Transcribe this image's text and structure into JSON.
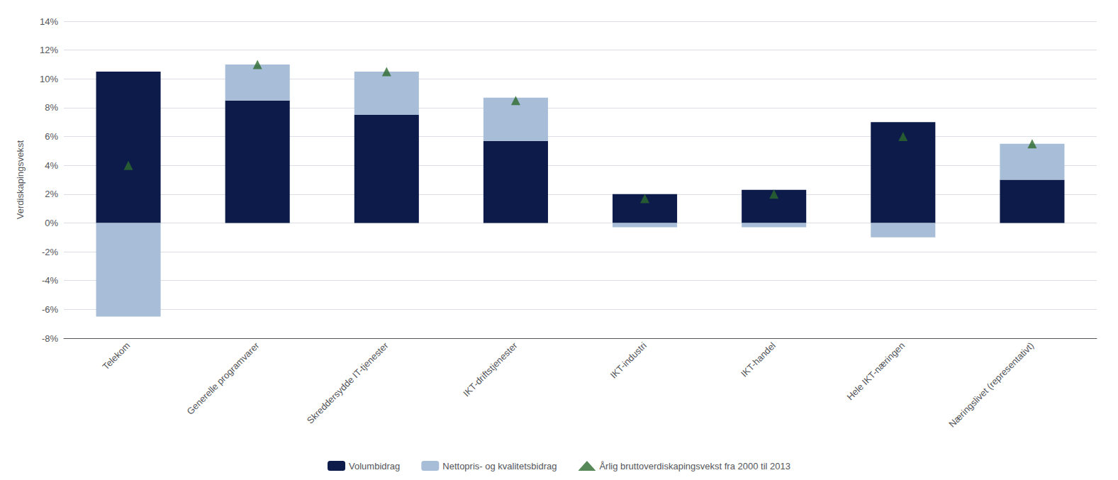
{
  "chart_data": {
    "type": "bar",
    "stacked": true,
    "categories": [
      "Telekom",
      "Generelle programvarer",
      "Skreddersydde IT-tjenester",
      "IKT-driftstjenester",
      "IKT-industri",
      "IKT-handel",
      "Hele IKT-næringen",
      "Næringslivet (representativt)"
    ],
    "ylabel": "Verdiskapingsvekst",
    "series": [
      {
        "name": "Volumbidrag",
        "color": "#0d1b4b",
        "values": [
          10.5,
          8.5,
          7.5,
          5.7,
          2.0,
          2.3,
          7.0,
          3.0
        ]
      },
      {
        "name": "Nettopris- og kvalitetsbidrag",
        "color": "#a8bed8",
        "values": [
          -6.5,
          2.5,
          3.0,
          3.0,
          -0.3,
          -0.3,
          -1.0,
          2.5
        ]
      },
      {
        "name": "Årlig bruttoverdiskapingsvekst fra 2000 til 2013",
        "type": "scatter",
        "marker": "triangle",
        "color": "#2d6a2d",
        "values": [
          4.0,
          11.0,
          10.5,
          8.5,
          1.7,
          2.0,
          6.0,
          5.5
        ]
      }
    ],
    "ylim": [
      -8,
      14
    ],
    "yticks": [
      {
        "value": -8,
        "label": "-8%"
      },
      {
        "value": -6,
        "label": "-6%"
      },
      {
        "value": -4,
        "label": "-4%"
      },
      {
        "value": -2,
        "label": "-2%"
      },
      {
        "value": 0,
        "label": "0%"
      },
      {
        "value": 2,
        "label": "2%"
      },
      {
        "value": 4,
        "label": "4%"
      },
      {
        "value": 6,
        "label": "6%"
      },
      {
        "value": 8,
        "label": "8%"
      },
      {
        "value": 10,
        "label": "10%"
      },
      {
        "value": 12,
        "label": "12%"
      },
      {
        "value": 14,
        "label": "14%"
      }
    ],
    "grid": true,
    "legend": "bottom"
  }
}
